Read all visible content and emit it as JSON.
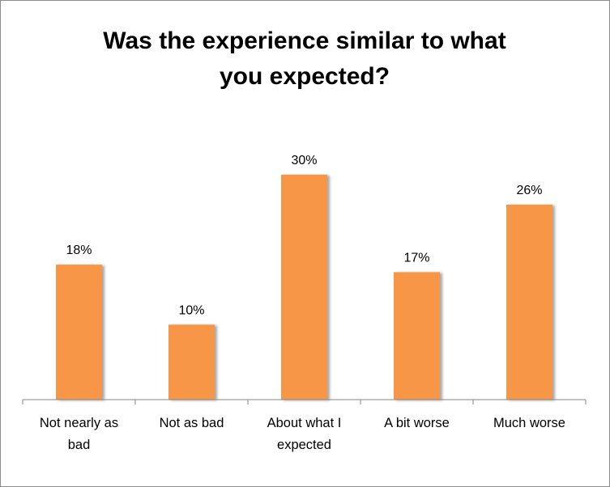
{
  "chart_data": {
    "type": "bar",
    "title_lines": [
      "Was the experience similar to what",
      "you expected?"
    ],
    "categories": [
      [
        "Not nearly as",
        "bad"
      ],
      [
        "Not as bad"
      ],
      [
        "About what I",
        "expected"
      ],
      [
        "A bit worse"
      ],
      [
        "Much worse"
      ]
    ],
    "values": [
      18,
      10,
      30,
      17,
      26
    ],
    "data_labels": [
      "18%",
      "10%",
      "30%",
      "17%",
      "26%"
    ],
    "xlabel": "",
    "ylabel": "",
    "ylim": [
      0,
      30
    ],
    "grid": false,
    "legend": "none",
    "bar_color": "#F79646"
  }
}
